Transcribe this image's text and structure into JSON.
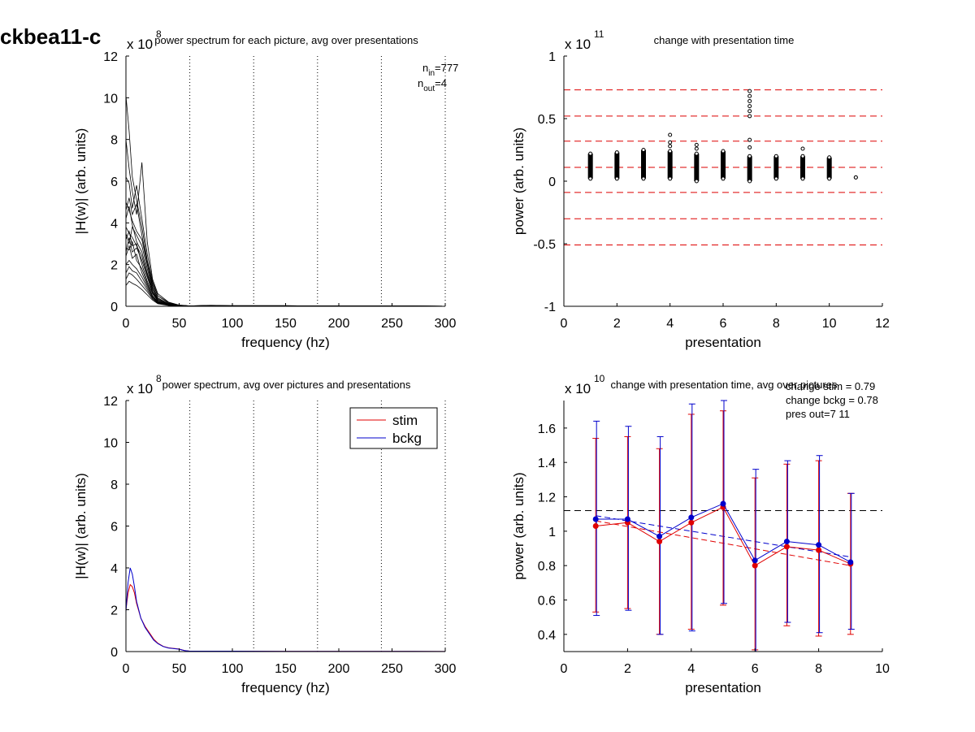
{
  "page_label": "ckbea11-c",
  "colors": {
    "stim": "#e00000",
    "bckg": "#0000cc",
    "axis": "#000000",
    "ref_red": "#dd0000"
  },
  "chart_data": [
    {
      "id": "p1",
      "type": "line",
      "title": "power spectrum for each picture, avg over presentations",
      "xlabel": "frequency (hz)",
      "ylabel": "|H(w)| (arb. units)",
      "multiplier": {
        "base": "x 10",
        "exp": "8"
      },
      "xlim": [
        0,
        300
      ],
      "ylim": [
        0,
        12
      ],
      "xticks": [
        0,
        50,
        100,
        150,
        200,
        250,
        300
      ],
      "yticks": [
        0,
        2,
        4,
        6,
        8,
        10,
        12
      ],
      "vlines": [
        60,
        120,
        180,
        240,
        300
      ],
      "annotations": [
        {
          "main": "n",
          "sub": "in",
          "rest": "=777"
        },
        {
          "main": "n",
          "sub": "out",
          "rest": "=4"
        }
      ],
      "x": [
        0,
        3,
        6,
        10,
        15,
        20,
        25,
        30,
        40,
        50,
        60,
        80,
        100,
        150,
        200,
        250,
        300
      ],
      "series": [
        {
          "values": [
            10.1,
            8.4,
            6.2,
            5.1,
            3.8,
            2.2,
            1.1,
            0.5,
            0.15,
            0.05,
            0.02,
            0.04,
            0.03,
            0.03,
            0.01,
            0.01,
            0.005
          ]
        },
        {
          "values": [
            8.0,
            6.6,
            5.5,
            4.4,
            6.9,
            3.1,
            1.3,
            0.6,
            0.2,
            0.06,
            0.02,
            0.05,
            0.03,
            0.03,
            0.01,
            0.01,
            0.005
          ]
        },
        {
          "values": [
            6.2,
            5.9,
            4.7,
            5.8,
            4.2,
            2.5,
            1.2,
            0.5,
            0.18,
            0.05,
            0.02,
            0.04,
            0.03,
            0.03,
            0.01,
            0.01,
            0.005
          ]
        },
        {
          "values": [
            5.0,
            4.6,
            4.1,
            3.6,
            3.2,
            2.0,
            0.9,
            0.4,
            0.12,
            0.04,
            0.02,
            0.03,
            0.02,
            0.02,
            0.01,
            0.01,
            0.005
          ]
        },
        {
          "values": [
            4.2,
            4.8,
            3.9,
            3.1,
            2.6,
            1.6,
            0.8,
            0.35,
            0.1,
            0.04,
            0.02,
            0.03,
            0.02,
            0.02,
            0.01,
            0.01,
            0.005
          ]
        },
        {
          "values": [
            3.8,
            3.5,
            3.3,
            2.9,
            2.4,
            1.5,
            0.7,
            0.3,
            0.1,
            0.03,
            0.01,
            0.03,
            0.02,
            0.02,
            0.01,
            0.01,
            0.005
          ]
        },
        {
          "values": [
            3.2,
            3.6,
            2.9,
            3.0,
            2.0,
            1.2,
            0.6,
            0.25,
            0.08,
            0.03,
            0.01,
            0.03,
            0.02,
            0.02,
            0.01,
            0.01,
            0.005
          ]
        },
        {
          "values": [
            2.8,
            2.7,
            3.1,
            2.2,
            1.8,
            1.1,
            0.5,
            0.22,
            0.08,
            0.03,
            0.01,
            0.02,
            0.02,
            0.02,
            0.01,
            0.01,
            0.005
          ]
        },
        {
          "values": [
            2.4,
            2.9,
            2.3,
            2.5,
            1.6,
            1.0,
            0.5,
            0.2,
            0.07,
            0.03,
            0.01,
            0.02,
            0.02,
            0.02,
            0.01,
            0.01,
            0.005
          ]
        },
        {
          "values": [
            2.0,
            2.2,
            2.0,
            1.8,
            1.4,
            0.9,
            0.45,
            0.18,
            0.06,
            0.02,
            0.01,
            0.02,
            0.02,
            0.02,
            0.01,
            0.01,
            0.005
          ]
        },
        {
          "values": [
            1.6,
            1.9,
            1.7,
            1.6,
            1.2,
            0.8,
            0.4,
            0.16,
            0.05,
            0.02,
            0.01,
            0.02,
            0.01,
            0.01,
            0.01,
            0.005,
            0.005
          ]
        },
        {
          "values": [
            1.3,
            1.6,
            1.5,
            1.3,
            1.0,
            0.7,
            0.35,
            0.14,
            0.05,
            0.02,
            0.01,
            0.02,
            0.01,
            0.01,
            0.01,
            0.005,
            0.005
          ]
        },
        {
          "values": [
            1.0,
            1.2,
            1.1,
            1.0,
            0.8,
            0.55,
            0.3,
            0.12,
            0.04,
            0.02,
            0.01,
            0.01,
            0.01,
            0.01,
            0.005,
            0.005,
            0.005
          ]
        },
        {
          "values": [
            4.6,
            5.2,
            4.4,
            4.9,
            3.4,
            2.1,
            1.0,
            0.4,
            0.12,
            0.04,
            0.02,
            0.03,
            0.02,
            0.02,
            0.01,
            0.01,
            0.005
          ]
        },
        {
          "values": [
            3.5,
            3.0,
            3.8,
            3.4,
            2.9,
            1.8,
            0.8,
            0.3,
            0.1,
            0.03,
            0.01,
            0.03,
            0.02,
            0.02,
            0.01,
            0.01,
            0.005
          ]
        },
        {
          "values": [
            2.6,
            3.3,
            2.6,
            2.8,
            2.2,
            1.4,
            0.65,
            0.25,
            0.08,
            0.03,
            0.01,
            0.02,
            0.02,
            0.02,
            0.01,
            0.01,
            0.005
          ]
        }
      ]
    },
    {
      "id": "p2",
      "type": "scatter",
      "title": "change with presentation time",
      "xlabel": "presentation",
      "ylabel": "power (arb. units)",
      "multiplier": {
        "base": "x 10",
        "exp": "11"
      },
      "xlim": [
        0,
        12
      ],
      "ylim": [
        -1,
        1
      ],
      "xticks": [
        0,
        2,
        4,
        6,
        8,
        10,
        12
      ],
      "yticks": [
        -1,
        -0.5,
        0,
        0.5,
        1
      ],
      "yticklabels": [
        "-1",
        "-0.5",
        "0",
        "0.5",
        "1"
      ],
      "hlines": [
        0.73,
        0.52,
        0.32,
        0.11,
        -0.09,
        -0.3,
        -0.51
      ],
      "columns": [
        {
          "x": 1,
          "min": 0.02,
          "max": 0.22,
          "outliers": []
        },
        {
          "x": 2,
          "min": 0.02,
          "max": 0.23,
          "outliers": []
        },
        {
          "x": 3,
          "min": 0.02,
          "max": 0.25,
          "outliers": []
        },
        {
          "x": 4,
          "min": 0.02,
          "max": 0.24,
          "outliers": [
            0.28,
            0.31,
            0.37
          ]
        },
        {
          "x": 5,
          "min": 0.0,
          "max": 0.22,
          "outliers": [
            0.26,
            0.29
          ]
        },
        {
          "x": 6,
          "min": 0.02,
          "max": 0.24,
          "outliers": []
        },
        {
          "x": 7,
          "min": 0.0,
          "max": 0.2,
          "outliers": [
            0.27,
            0.33,
            0.52,
            0.56,
            0.6,
            0.64,
            0.68,
            0.72
          ]
        },
        {
          "x": 8,
          "min": 0.02,
          "max": 0.2,
          "outliers": []
        },
        {
          "x": 9,
          "min": 0.02,
          "max": 0.2,
          "outliers": [
            0.26
          ]
        },
        {
          "x": 10,
          "min": 0.02,
          "max": 0.19,
          "outliers": []
        },
        {
          "x": 11,
          "min": 0.03,
          "max": 0.03,
          "outliers": []
        }
      ]
    },
    {
      "id": "p3",
      "type": "line",
      "title": "power spectrum, avg over pictures and presentations",
      "xlabel": "frequency (hz)",
      "ylabel": "|H(w)| (arb. units)",
      "multiplier": {
        "base": "x 10",
        "exp": "8"
      },
      "xlim": [
        0,
        300
      ],
      "ylim": [
        0,
        12
      ],
      "xticks": [
        0,
        50,
        100,
        150,
        200,
        250,
        300
      ],
      "yticks": [
        0,
        2,
        4,
        6,
        8,
        10,
        12
      ],
      "vlines": [
        60,
        120,
        180,
        240,
        300
      ],
      "legend": {
        "position": "top-right"
      },
      "x": [
        0,
        2,
        4,
        6,
        8,
        10,
        14,
        18,
        22,
        26,
        30,
        35,
        40,
        45,
        50,
        55,
        60,
        100,
        150,
        200,
        250,
        300
      ],
      "series": [
        {
          "name": "stim",
          "color": "#e00000",
          "values": [
            2.0,
            2.8,
            3.2,
            3.1,
            2.8,
            2.3,
            1.6,
            1.2,
            0.9,
            0.6,
            0.4,
            0.25,
            0.18,
            0.15,
            0.12,
            0.05,
            0.02,
            0.02,
            0.01,
            0.01,
            0.01,
            0.005
          ]
        },
        {
          "name": "bckg",
          "color": "#0000cc",
          "values": [
            1.9,
            3.3,
            4.0,
            3.7,
            3.1,
            2.4,
            1.6,
            1.15,
            0.85,
            0.55,
            0.38,
            0.24,
            0.17,
            0.14,
            0.11,
            0.05,
            0.02,
            0.02,
            0.01,
            0.01,
            0.01,
            0.005
          ]
        }
      ]
    },
    {
      "id": "p4",
      "type": "line",
      "title": "change with presentation time, avg over pictures",
      "xlabel": "presentation",
      "ylabel": "power (arb. units)",
      "multiplier": {
        "base": "x 10",
        "exp": "10"
      },
      "xlim": [
        0,
        10
      ],
      "ylim": [
        0.3,
        1.76
      ],
      "xticks": [
        0,
        2,
        4,
        6,
        8,
        10
      ],
      "yticks": [
        0.4,
        0.6,
        0.8,
        1,
        1.2,
        1.4,
        1.6
      ],
      "yticklabels": [
        "0.4",
        "0.6",
        "0.8",
        "1",
        "1.2",
        "1.4",
        "1.6"
      ],
      "annotations": [
        "change stim = 0.79",
        "change bckg = 0.78",
        "pres out=7 11"
      ],
      "reference_line": 1.12,
      "x": [
        1,
        2,
        3,
        4,
        5,
        6,
        7,
        8,
        9
      ],
      "series": [
        {
          "name": "stim",
          "color": "#e00000",
          "values": [
            1.03,
            1.05,
            0.94,
            1.05,
            1.14,
            0.8,
            0.91,
            0.89,
            0.81
          ],
          "err_low": [
            0.53,
            0.55,
            0.4,
            0.43,
            0.57,
            0.31,
            0.45,
            0.39,
            0.4
          ],
          "err_high": [
            1.54,
            1.55,
            1.48,
            1.68,
            1.7,
            1.31,
            1.39,
            1.41,
            1.22
          ],
          "trend": [
            1.06,
            0.8
          ]
        },
        {
          "name": "bckg",
          "color": "#0000cc",
          "values": [
            1.07,
            1.07,
            0.97,
            1.08,
            1.16,
            0.83,
            0.94,
            0.92,
            0.82
          ],
          "err_low": [
            0.51,
            0.54,
            0.4,
            0.42,
            0.58,
            0.3,
            0.47,
            0.41,
            0.43
          ],
          "err_high": [
            1.64,
            1.61,
            1.55,
            1.74,
            1.76,
            1.36,
            1.41,
            1.44,
            1.22
          ],
          "trend": [
            1.09,
            0.85
          ]
        }
      ]
    }
  ]
}
